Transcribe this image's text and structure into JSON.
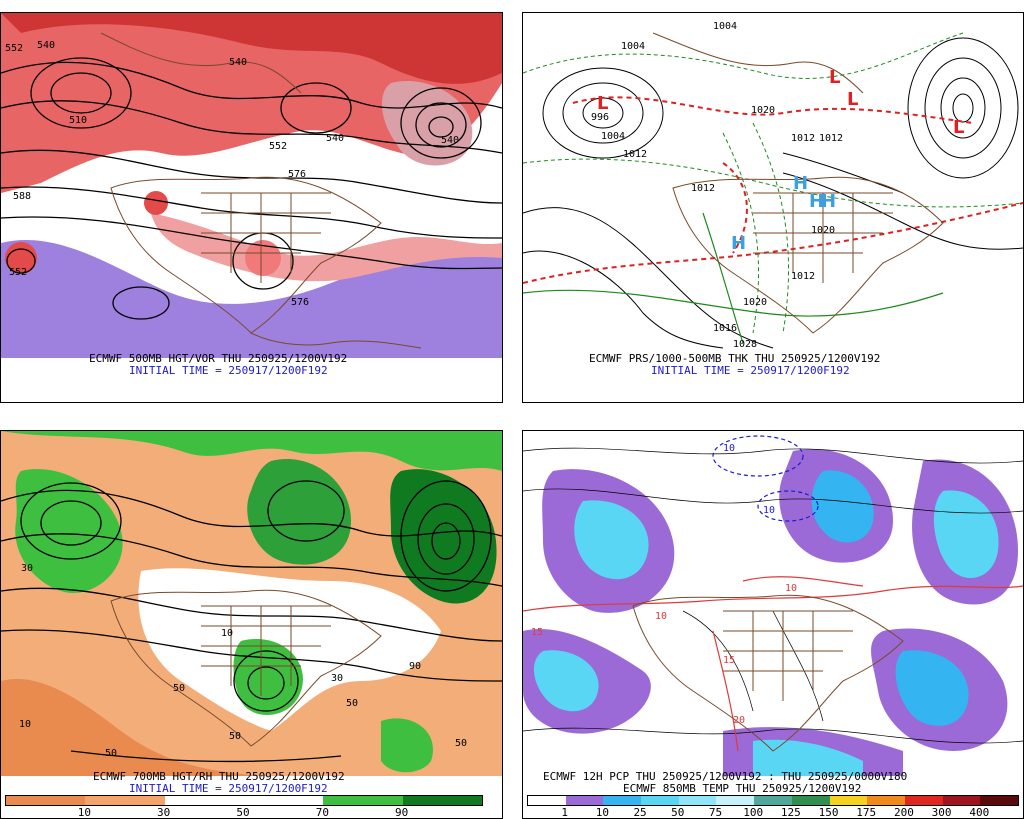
{
  "panels": {
    "top_left": {
      "title": "ECMWF 500MB HGT/VOR THU 250925/1200V192",
      "initial": "INITIAL TIME = 250917/1200F192",
      "labels": [
        "552",
        "540",
        "540",
        "510",
        "552",
        "540",
        "576",
        "588",
        "552",
        "540",
        "576"
      ]
    },
    "top_right": {
      "title": "ECMWF PRS/1000-500MB THK THU 250925/1200V192",
      "initial": "INITIAL TIME = 250917/1200F192",
      "labels": [
        "1004",
        "1004",
        "1012",
        "996",
        "1004",
        "1012",
        "1020",
        "1012",
        "1020",
        "1012",
        "1020",
        "1028",
        "1016",
        "1012",
        "L",
        "L",
        "L",
        "L",
        "H",
        "H",
        "H",
        "H"
      ]
    },
    "bottom_left": {
      "title": "ECMWF 700MB HGT/RH THU 250925/1200V192",
      "initial": "INITIAL TIME = 250917/1200F192",
      "labels": [
        "10",
        "30",
        "50",
        "50",
        "50",
        "50",
        "90",
        "10",
        "50",
        "30"
      ],
      "scale_ticks": [
        "10",
        "30",
        "50",
        "70",
        "90"
      ],
      "scale_colors": [
        "#e98a4e",
        "#f2a46a",
        "#ffffff",
        "#ffffff",
        "#3fbf3f",
        "#0f7a1f"
      ]
    },
    "bottom_right": {
      "title": "ECMWF 12H PCP THU 250925/1200V192 : THU 250925/0000V180",
      "subtitle": "ECMWF 850MB TEMP THU 250925/1200V192",
      "labels": [
        "10",
        "10",
        "15",
        "10",
        "15",
        "20",
        "10"
      ],
      "scale_ticks": [
        "1",
        "10",
        "25",
        "50",
        "75",
        "100",
        "125",
        "150",
        "175",
        "200",
        "300",
        "400"
      ],
      "scale_colors": [
        "#ffffff",
        "#9b6ad6",
        "#34b4f0",
        "#5ad6f5",
        "#8fe6fa",
        "#c7f2fb",
        "#4fa89a",
        "#2f8f4f",
        "#f4d21f",
        "#f08a1e",
        "#e0261e",
        "#a0141e",
        "#5a0a0a"
      ]
    }
  },
  "colors": {
    "caption_black": "#000000",
    "caption_blue": "#1a1ad6",
    "geography": "#7a4a2a"
  }
}
